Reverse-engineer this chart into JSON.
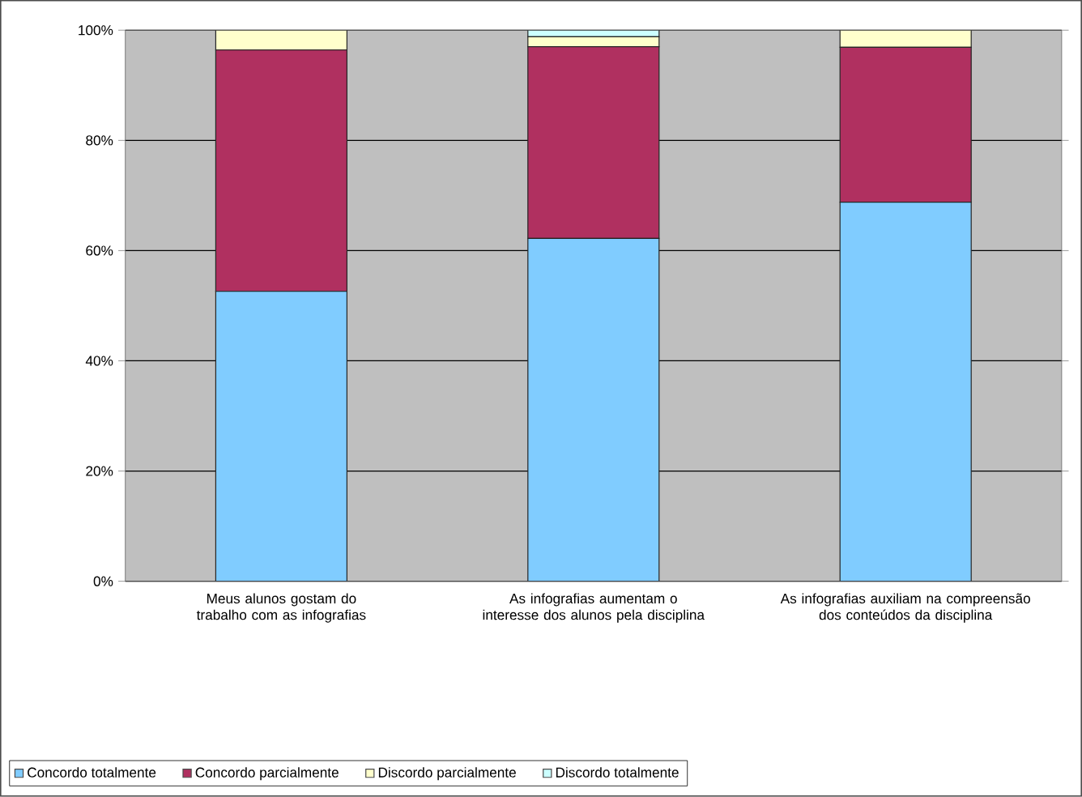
{
  "chart_data": {
    "type": "bar",
    "stacked": true,
    "categories": [
      "Meus alunos gostam do trabalho com as infografias",
      "As infografias aumentam o interesse dos alunos pela disciplina",
      "As infografias auxiliam na compreensão dos conteúdos da disciplina"
    ],
    "series": [
      {
        "name": "Concordo totalmente",
        "color": "#80ccff",
        "values": [
          52.6,
          62.2,
          68.8
        ]
      },
      {
        "name": "Concordo parcialmente",
        "color": "#b03060",
        "values": [
          43.8,
          34.8,
          28.1
        ]
      },
      {
        "name": "Discordo parcialmente",
        "color": "#ffffcc",
        "values": [
          3.6,
          1.8,
          3.1
        ]
      },
      {
        "name": "Discordo totalmente",
        "color": "#ccffff",
        "values": [
          0,
          1.2,
          0
        ]
      }
    ],
    "ylim": [
      0,
      100
    ],
    "yticks": [
      {
        "value": 0,
        "label": "0%"
      },
      {
        "value": 20,
        "label": "20%"
      },
      {
        "value": 40,
        "label": "40%"
      },
      {
        "value": 60,
        "label": "60%"
      },
      {
        "value": 80,
        "label": "80%"
      },
      {
        "value": 100,
        "label": "100%"
      }
    ],
    "grid": "y",
    "legend": "bottom"
  }
}
